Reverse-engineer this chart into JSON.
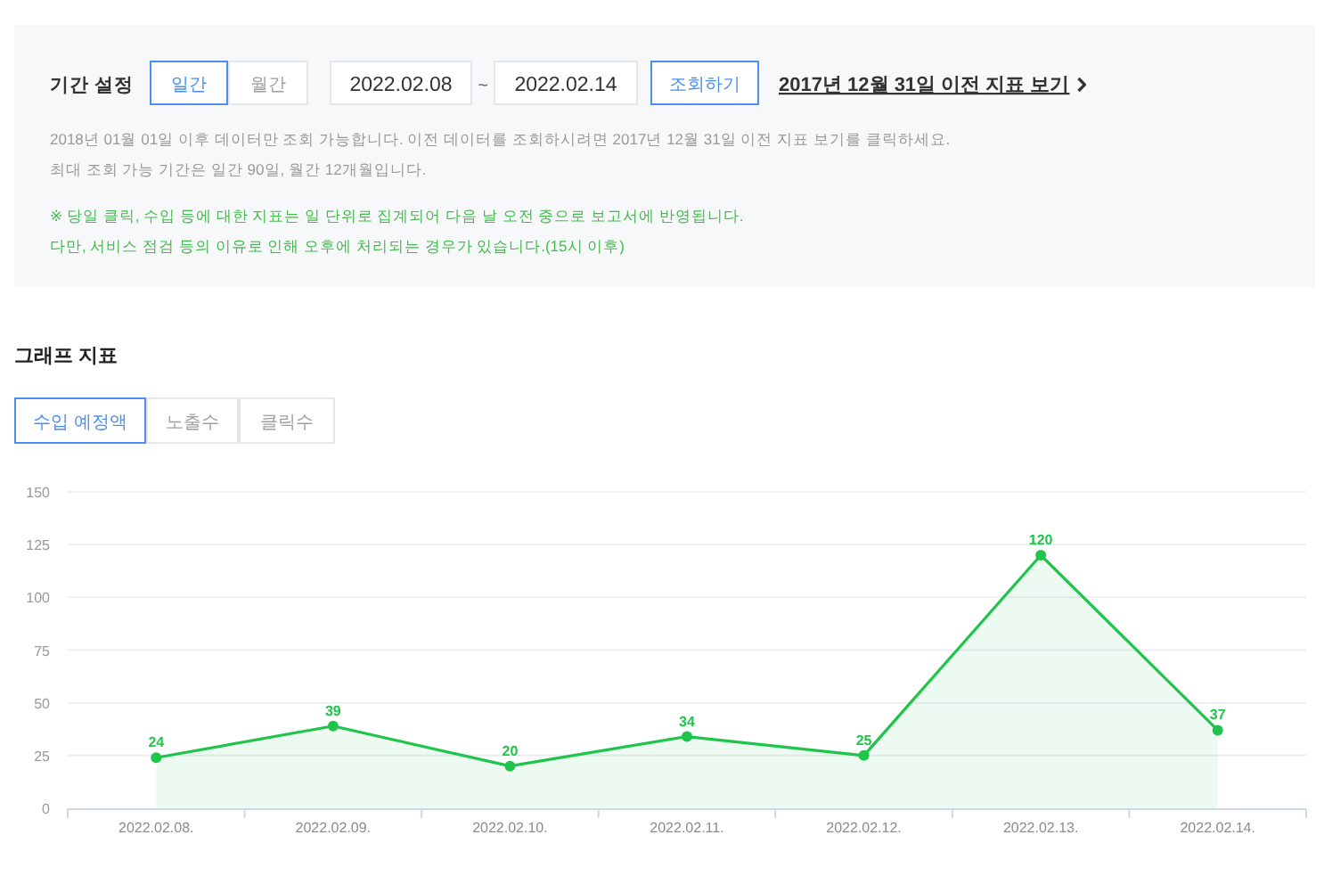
{
  "chart_data": {
    "type": "area",
    "title": "그래프 지표",
    "categories": [
      "2022.02.08.",
      "2022.02.09.",
      "2022.02.10.",
      "2022.02.11.",
      "2022.02.12.",
      "2022.02.13.",
      "2022.02.14."
    ],
    "values": [
      24,
      39,
      20,
      34,
      25,
      120,
      37
    ],
    "color": "#1fc44a",
    "ylim": [
      0,
      150
    ],
    "yticks": [
      0,
      25,
      50,
      75,
      100,
      125,
      150
    ],
    "grid": "y",
    "marker": "circle",
    "data_labels": true,
    "annotations": [
      "기간 설정",
      "일간",
      "월간",
      "2022.02.08",
      "~",
      "2022.02.14",
      "조회하기",
      "2017년 12월 31일 이전 지표 보기",
      "2018년 01월 01일 이후 데이터만 조회 가능합니다. 이전 데이터를 조회하시려면 2017년 12월 31일 이전 지표 보기를 클릭하세요.",
      "최대 조회 가능 기간은 일간 90일, 월간 12개월입니다.",
      "※ 당일 클릭, 수입 등에 대한 지표는 일 단위로 집계되어 다음 날 오전 중으로 보고서에 반영됩니다.",
      "다만, 서비스 점검 등의 이유로 인해 오후에 처리되는 경우가 있습니다.(15시 이후)",
      "수입 예정액",
      "노출수",
      "클릭수"
    ]
  }
}
